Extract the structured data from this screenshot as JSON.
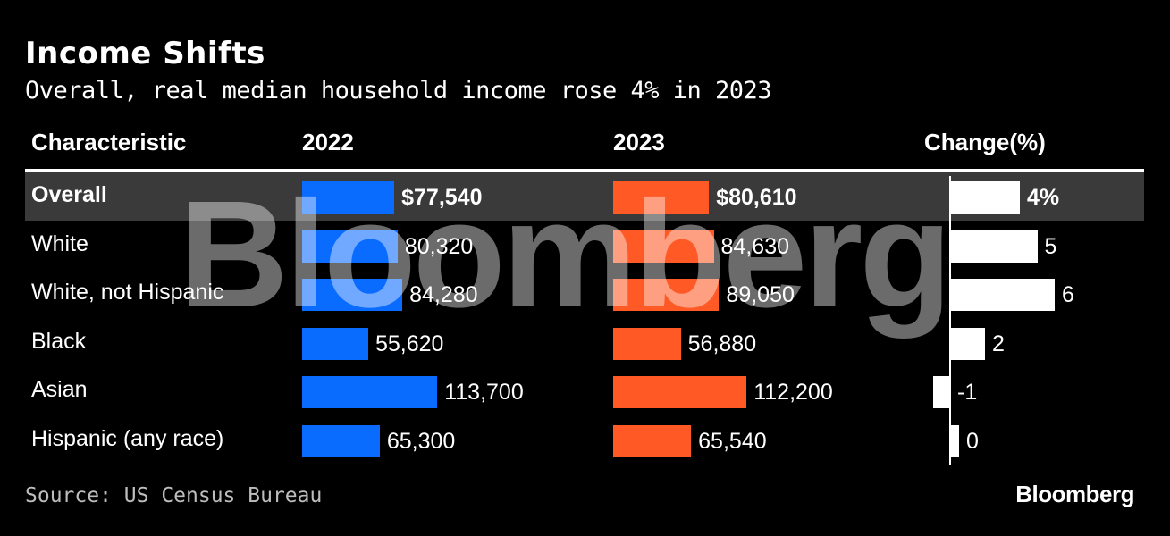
{
  "title": "Income Shifts",
  "subtitle": "Overall, real median household income rose 4% in 2023",
  "columns": {
    "characteristic": "Characteristic",
    "y2022": "2022",
    "y2023": "2023",
    "change": "Change(%)"
  },
  "watermark": "Bloomberg",
  "source": "Source: US Census Bureau",
  "brand": "Bloomberg",
  "colors": {
    "bar2022": "#0a6cff",
    "bar2023": "#ff5a26",
    "change": "#ffffff",
    "highlight": "#3a3a3a"
  },
  "chart_data": {
    "type": "table",
    "title": "Income Shifts",
    "subtitle": "Overall, real median household income rose 4% in 2023",
    "categories": [
      "Overall",
      "White",
      "White, not Hispanic",
      "Black",
      "Asian",
      "Hispanic (any race)"
    ],
    "series": [
      {
        "name": "2022",
        "values": [
          77540,
          80320,
          84280,
          55620,
          113700,
          65300
        ],
        "labels": [
          "$77,540",
          "80,320",
          "84,280",
          "55,620",
          "113,700",
          "65,300"
        ]
      },
      {
        "name": "2023",
        "values": [
          80610,
          84630,
          89050,
          56880,
          112200,
          65540
        ],
        "labels": [
          "$80,610",
          "84,630",
          "89,050",
          "56,880",
          "112,200",
          "65,540"
        ]
      },
      {
        "name": "Change(%)",
        "values": [
          4,
          5,
          6,
          2,
          -1,
          0
        ],
        "labels": [
          "4%",
          "5",
          "6",
          "2",
          "-1",
          "0"
        ]
      }
    ]
  }
}
